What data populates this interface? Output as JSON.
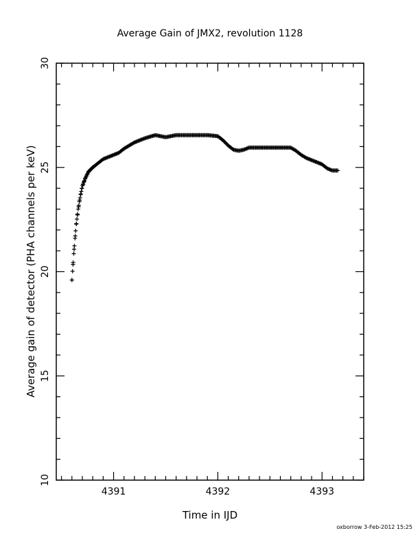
{
  "chart_data": {
    "type": "scatter",
    "title": "Average Gain of JMX2, revolution 1128",
    "xlabel": "Time in IJD",
    "ylabel": "Average gain of detector (PHA channels per keV)",
    "xlim": [
      4390.45,
      4393.4
    ],
    "ylim": [
      10,
      30
    ],
    "xticks": [
      4391,
      4392,
      4393
    ],
    "xtick_labels": [
      "4391",
      "4392",
      "4393"
    ],
    "yticks": [
      10,
      15,
      20,
      25,
      30
    ],
    "ytick_labels": [
      "10",
      "15",
      "20",
      "25",
      "30"
    ],
    "grid": false,
    "marker": "plus",
    "color": "#000000",
    "series": [
      {
        "x": [
          4390.6,
          4390.62,
          4390.64,
          4390.66,
          4390.68,
          4390.7,
          4390.73,
          4390.76,
          4390.8,
          4390.85,
          4390.9,
          4390.95,
          4391.0,
          4391.05,
          4391.1,
          4391.2,
          4391.3,
          4391.4,
          4391.5,
          4391.6,
          4391.7,
          4391.8,
          4391.9,
          4392.0,
          4392.05,
          4392.1,
          4392.15,
          4392.2,
          4392.25,
          4392.3,
          4392.4,
          4392.5,
          4392.6,
          4392.7,
          4392.75,
          4392.8,
          4392.85,
          4392.9,
          4393.0,
          4393.05,
          4393.1,
          4393.15
        ],
        "y": [
          19.6,
          21.0,
          22.2,
          23.0,
          23.6,
          24.1,
          24.5,
          24.8,
          25.0,
          25.2,
          25.4,
          25.5,
          25.6,
          25.7,
          25.9,
          26.2,
          26.4,
          26.55,
          26.45,
          26.55,
          26.55,
          26.55,
          26.55,
          26.5,
          26.3,
          26.05,
          25.85,
          25.8,
          25.85,
          25.95,
          25.95,
          25.95,
          25.95,
          25.95,
          25.8,
          25.6,
          25.45,
          25.35,
          25.15,
          24.95,
          24.85,
          24.85
        ]
      }
    ]
  },
  "footer": {
    "stamp": "oxborrow  3-Feb-2012 15:25"
  }
}
